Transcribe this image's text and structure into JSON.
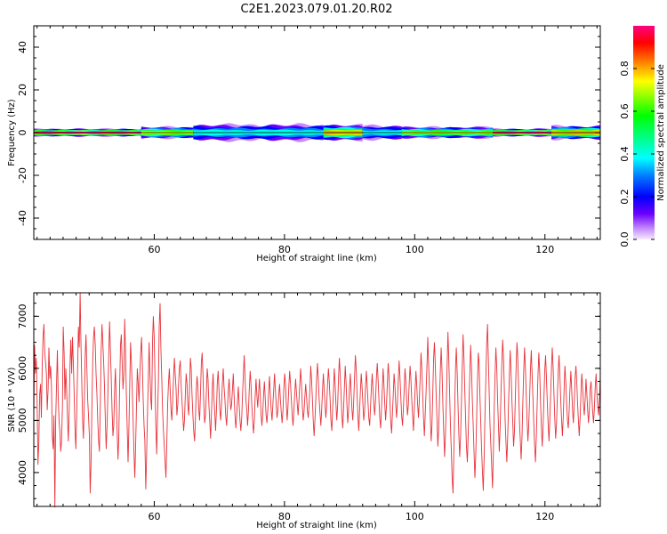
{
  "figure_title": "C2E1.2023.079.01.20.R02",
  "colors": {
    "snr_line": "#e8323a",
    "frame": "#000000",
    "background": "#ffffff"
  },
  "chart_data": [
    {
      "type": "heatmap",
      "name": "spectrogram",
      "xlabel": "Height of straight line (km)",
      "ylabel": "Frequency (Hz)",
      "xlim": [
        41.5,
        128.5
      ],
      "ylim": [
        -50,
        50
      ],
      "xticks": [
        60,
        80,
        100,
        120
      ],
      "xtick_labels": [
        "60",
        "80",
        "100",
        "120"
      ],
      "yticks": [
        -40,
        -20,
        0,
        20,
        40
      ],
      "ytick_labels": [
        "-40",
        "-20",
        "0",
        "20",
        "40"
      ],
      "colorbar": {
        "label": "Normalized spectral amplitude",
        "range": [
          0.0,
          1.0
        ],
        "ticks": [
          0.0,
          0.2,
          0.4,
          0.6,
          0.8
        ],
        "tick_labels": [
          "0.0",
          "0.2",
          "0.4",
          "0.6",
          "0.8"
        ],
        "colormap": "hsv-reversed"
      },
      "band": {
        "center_hz": 0,
        "segments": [
          {
            "x_start": 41.5,
            "x_end": 58,
            "peak": 1.0,
            "half_width_hz": 2.0
          },
          {
            "x_start": 58,
            "x_end": 66,
            "peak": 0.75,
            "half_width_hz": 3.0
          },
          {
            "x_start": 66,
            "x_end": 86,
            "peak": 0.45,
            "half_width_hz": 4.5
          },
          {
            "x_start": 86,
            "x_end": 92,
            "peak": 0.8,
            "half_width_hz": 4.0
          },
          {
            "x_start": 92,
            "x_end": 98,
            "peak": 0.45,
            "half_width_hz": 4.0
          },
          {
            "x_start": 98,
            "x_end": 112,
            "peak": 0.7,
            "half_width_hz": 3.0
          },
          {
            "x_start": 112,
            "x_end": 121,
            "peak": 1.0,
            "half_width_hz": 2.0
          },
          {
            "x_start": 121,
            "x_end": 128.5,
            "peak": 0.85,
            "half_width_hz": 3.5
          }
        ]
      }
    },
    {
      "type": "line",
      "name": "snr",
      "xlabel": "Height of straight line (km)",
      "ylabel": "SNR (10 * V/V)",
      "xlim": [
        41.5,
        128.5
      ],
      "ylim": [
        3350,
        7450
      ],
      "xticks": [
        60,
        80,
        100,
        120
      ],
      "xtick_labels": [
        "60",
        "80",
        "100",
        "120"
      ],
      "yticks": [
        4000,
        5000,
        6000,
        7000
      ],
      "ytick_labels": [
        "4000",
        "5000",
        "6000",
        "7000"
      ],
      "series": [
        {
          "name": "SNR",
          "x_start": 41.5,
          "x_end": 128.5,
          "values": [
            5100,
            6450,
            5900,
            6200,
            5300,
            4150,
            4600,
            5500,
            5700,
            5050,
            6100,
            6600,
            6850,
            6300,
            6100,
            5900,
            5200,
            5600,
            6400,
            5800,
            6050,
            5650,
            4700,
            4450,
            5100,
            3330,
            5000,
            5700,
            6350,
            5500,
            5000,
            4800,
            4400,
            4600,
            5250,
            6800,
            6300,
            5400,
            6000,
            5600,
            5050,
            4600,
            5200,
            6050,
            6550,
            5900,
            6600,
            6100,
            5500,
            4800,
            4450,
            5200,
            5950,
            6800,
            6400,
            7450,
            6500,
            5700,
            5000,
            4650,
            5300,
            6200,
            6650,
            6050,
            5400,
            5100,
            4700,
            3600,
            4200,
            5200,
            6150,
            6600,
            6800,
            6450,
            5900,
            5500,
            5000,
            4600,
            4400,
            5300,
            6300,
            6850,
            6500,
            6100,
            5650,
            4950,
            4450,
            4850,
            5500,
            6200,
            6900,
            6400,
            5800,
            5200,
            4700,
            4900,
            5600,
            6000,
            5350,
            4800,
            4250,
            4700,
            5600,
            6450,
            6650,
            6100,
            5600,
            5900,
            6950,
            6300,
            5500,
            4800,
            4200,
            4900,
            5700,
            6500,
            6100,
            5600,
            5000,
            4400,
            3900,
            4500,
            5300,
            6000,
            5700,
            5350,
            5900,
            6300,
            6600,
            6050,
            5400,
            4900,
            4600,
            3680,
            4300,
            5100,
            5750,
            6500,
            5900,
            5400,
            5200,
            6500,
            7000,
            6600,
            5800,
            4900,
            4350,
            5100,
            5700,
            6800,
            7250,
            6400,
            5800,
            5200,
            4800,
            4500,
            4200,
            3900,
            4500,
            5300,
            5700,
            6000,
            5600,
            5200,
            5000,
            5400,
            5800,
            6200,
            5900,
            5600,
            5100,
            5300,
            5700,
            6000,
            6150,
            5700,
            5400,
            5100,
            4800,
            5000,
            5500,
            5900,
            5700,
            5300,
            5100,
            5600,
            6200,
            6000,
            5500,
            5100,
            4800,
            4600,
            5000,
            5600,
            5850,
            5600,
            5200,
            5000,
            5500,
            6100,
            6300,
            5900,
            5300,
            4950,
            5100,
            5500,
            6000,
            5800,
            5300,
            5000,
            4650,
            5100,
            5600,
            5900,
            5400,
            5150,
            4800,
            5200,
            5700,
            5950,
            5600,
            5200,
            5000,
            5300,
            5700,
            6000,
            5650,
            5400,
            5100,
            4900,
            5200,
            5550,
            5800,
            5500,
            5200,
            5300,
            5600,
            5900,
            5450,
            5100,
            4850,
            5100,
            5400,
            5650,
            5300,
            5000,
            4800,
            5050,
            5500,
            5900,
            6250,
            5800,
            5400,
            5200,
            4900,
            5200,
            5600,
            5950,
            5700,
            5300,
            5000,
            4750,
            5000,
            5450,
            5800,
            5500,
            5250,
            5500,
            5800,
            5500,
            5100,
            4900,
            5150,
            5500,
            5750,
            5400,
            5100,
            4950,
            5200,
            5550,
            5850,
            5500,
            5200,
            5000,
            5300,
            5600,
            5900,
            5600,
            5300,
            5050,
            5200,
            5500,
            5700,
            5400,
            5150,
            4950,
            5200,
            5600,
            5900,
            5700,
            5300,
            5000,
            5250,
            5650,
            5950,
            5700,
            5400,
            5100,
            4900,
            5200,
            5500,
            5800,
            5550,
            5300,
            5100,
            5400,
            5700,
            6000,
            5700,
            5300,
            5000,
            5150,
            5450,
            5700,
            5450,
            5200,
            5050,
            5300,
            5600,
            6050,
            5800,
            5400,
            5000,
            4700,
            5000,
            5400,
            5800,
            6100,
            5800,
            5400,
            5150,
            4900,
            5200,
            5600,
            5900,
            5600,
            5300,
            5050,
            5300,
            5700,
            6000,
            5750,
            5400,
            5000,
            4800,
            5200,
            5600,
            6000,
            5700,
            5300,
            5000,
            5300,
            5800,
            6200,
            5900,
            5500,
            5100,
            4850,
            5200,
            5650,
            6050,
            5700,
            5300,
            4950,
            5200,
            5600,
            5900,
            5550,
            5200,
            5000,
            5350,
            5800,
            6250,
            6000,
            5500,
            5100,
            4800,
            5150,
            5550,
            5900,
            5650,
            5300,
            5000,
            5200,
            5600,
            5950,
            5700,
            5350,
            5050,
            4900,
            5250,
            5600,
            5900,
            5600,
            5300,
            5100,
            5400,
            5800,
            6100,
            5800,
            5400,
            5050,
            4850,
            5200,
            5600,
            6000,
            5700,
            5300,
            5000,
            5300,
            5700,
            6100,
            5850,
            5400,
            5000,
            4750,
            5100,
            5500,
            5900,
            5650,
            5300,
            5050,
            5350,
            5750,
            6150,
            5850,
            5450,
            5100,
            4900,
            5200,
            5600,
            6000,
            5750,
            5400,
            5100,
            5300,
            5700,
            6050,
            5800,
            5400,
            5100,
            4800,
            5200,
            5600,
            5950,
            5650,
            5300,
            5050,
            5400,
            5800,
            6300,
            6000,
            5500,
            5050,
            4700,
            5100,
            5550,
            6000,
            6600,
            6100,
            5600,
            5100,
            4600,
            4900,
            5500,
            6200,
            6500,
            6050,
            5500,
            5000,
            4500,
            4850,
            5400,
            6000,
            6400,
            5900,
            5300,
            4800,
            4300,
            4700,
            5300,
            6000,
            6700,
            6200,
            5500,
            4900,
            4400,
            3900,
            3600,
            4400,
            5200,
            6000,
            6400,
            5900,
            5300,
            4700,
            4300,
            4700,
            5300,
            6050,
            6650,
            6200,
            5600,
            5000,
            4500,
            4200,
            4700,
            5300,
            5900,
            6450,
            6000,
            5400,
            4900,
            4400,
            3900,
            4300,
            5000,
            5700,
            6300,
            6100,
            5500,
            4950,
            4450,
            4000,
            3650,
            4300,
            5100,
            5800,
            6450,
            6850,
            6200,
            5500,
            4900,
            4500,
            4100,
            3700,
            4400,
            5200,
            5900,
            6400,
            6000,
            5400,
            4900,
            4400,
            4900,
            5500,
            6100,
            6550,
            6200,
            5600,
            5000,
            4550,
            4200,
            4700,
            5300,
            5900,
            6350,
            5900,
            5400,
            4950,
            4500,
            4800,
            5400,
            6000,
            6500,
            6200,
            5600,
            5000,
            4600,
            4250,
            4700,
            5350,
            5950,
            6400,
            6000,
            5500,
            5000,
            4600,
            4900,
            5400,
            5950,
            6350,
            5900,
            5400,
            4950,
            4500,
            4200,
            4700,
            5300,
            5900,
            6300,
            5900,
            5350,
            4900,
            4500,
            4850,
            5400,
            5950,
            6250,
            5850,
            5350,
            4950,
            4600,
            5000,
            5500,
            6000,
            6400,
            6000,
            5500,
            5000,
            4650,
            4950,
            5450,
            5950,
            6250,
            5850,
            5400,
            5000,
            4700,
            5100,
            5600,
            6050,
            5750,
            5350,
            5000,
            4850,
            5200,
            5600,
            5950,
            5600,
            5200,
            4950,
            5300,
            5800,
            6050,
            5750,
            5350,
            5000,
            4700,
            5050,
            5500,
            5900,
            5650,
            5300,
            5100,
            5400,
            5800,
            5500,
            5200,
            4950,
            5200,
            5600,
            5750,
            5450,
            5150,
            4950,
            5250,
            5650,
            5900,
            5500,
            5250,
            5100,
            5450,
            5850
          ]
        }
      ]
    }
  ]
}
